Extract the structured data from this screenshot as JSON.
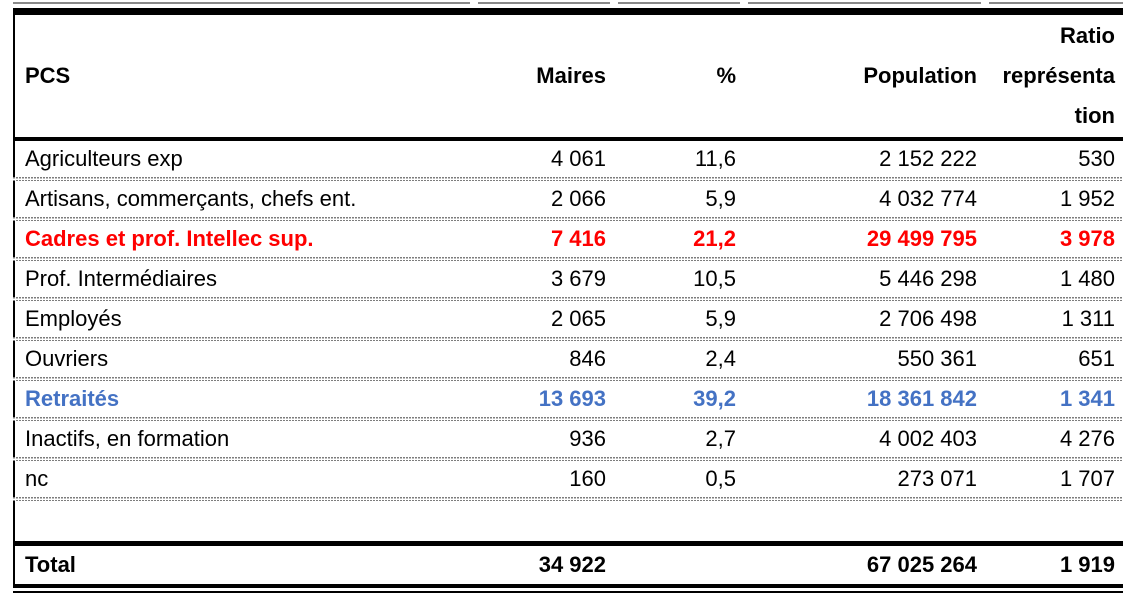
{
  "chart_data": {
    "type": "table",
    "columns": [
      "PCS",
      "Maires",
      "%",
      "Population",
      "Ratio représentation"
    ],
    "header": {
      "pcs": "PCS",
      "maires": "Maires",
      "pct": "%",
      "population": "Population",
      "ratio_lines": [
        "Ratio",
        "représenta",
        "tion"
      ]
    },
    "rows": [
      {
        "pcs": "Agriculteurs exp",
        "maires": "4 061",
        "pct": "11,6",
        "population": "2 152 222",
        "ratio": "530",
        "emphasis": "none"
      },
      {
        "pcs": "Artisans, commerçants, chefs ent.",
        "maires": "2 066",
        "pct": "5,9",
        "population": "4 032 774",
        "ratio": "1 952",
        "emphasis": "none"
      },
      {
        "pcs": "Cadres et prof. Intellec sup.",
        "maires": "7 416",
        "pct": "21,2",
        "population": "29 499 795",
        "ratio": "3 978",
        "emphasis": "red"
      },
      {
        "pcs": "Prof. Intermédiaires",
        "maires": "3 679",
        "pct": "10,5",
        "population": "5 446 298",
        "ratio": "1 480",
        "emphasis": "none"
      },
      {
        "pcs": "Employés",
        "maires": "2 065",
        "pct": "5,9",
        "population": "2 706 498",
        "ratio": "1 311",
        "emphasis": "none"
      },
      {
        "pcs": "Ouvriers",
        "maires": "846",
        "pct": "2,4",
        "population": "550 361",
        "ratio": "651",
        "emphasis": "none"
      },
      {
        "pcs": "Retraités",
        "maires": "13 693",
        "pct": "39,2",
        "population": "18 361 842",
        "ratio": "1 341",
        "emphasis": "blue"
      },
      {
        "pcs": "Inactifs, en formation",
        "maires": "936",
        "pct": "2,7",
        "population": "4 002 403",
        "ratio": "4 276",
        "emphasis": "none"
      },
      {
        "pcs": "nc",
        "maires": "160",
        "pct": "0,5",
        "population": "273 071",
        "ratio": "1 707",
        "emphasis": "none"
      }
    ],
    "total": {
      "pcs": "Total",
      "maires": "34 922",
      "pct": "",
      "population": "67 025 264",
      "ratio": "1 919"
    },
    "colors": {
      "emphasis_red": "#ff0000",
      "emphasis_blue": "#4472c4",
      "border": "#000000",
      "row_separator": "#7d7d7d"
    }
  }
}
